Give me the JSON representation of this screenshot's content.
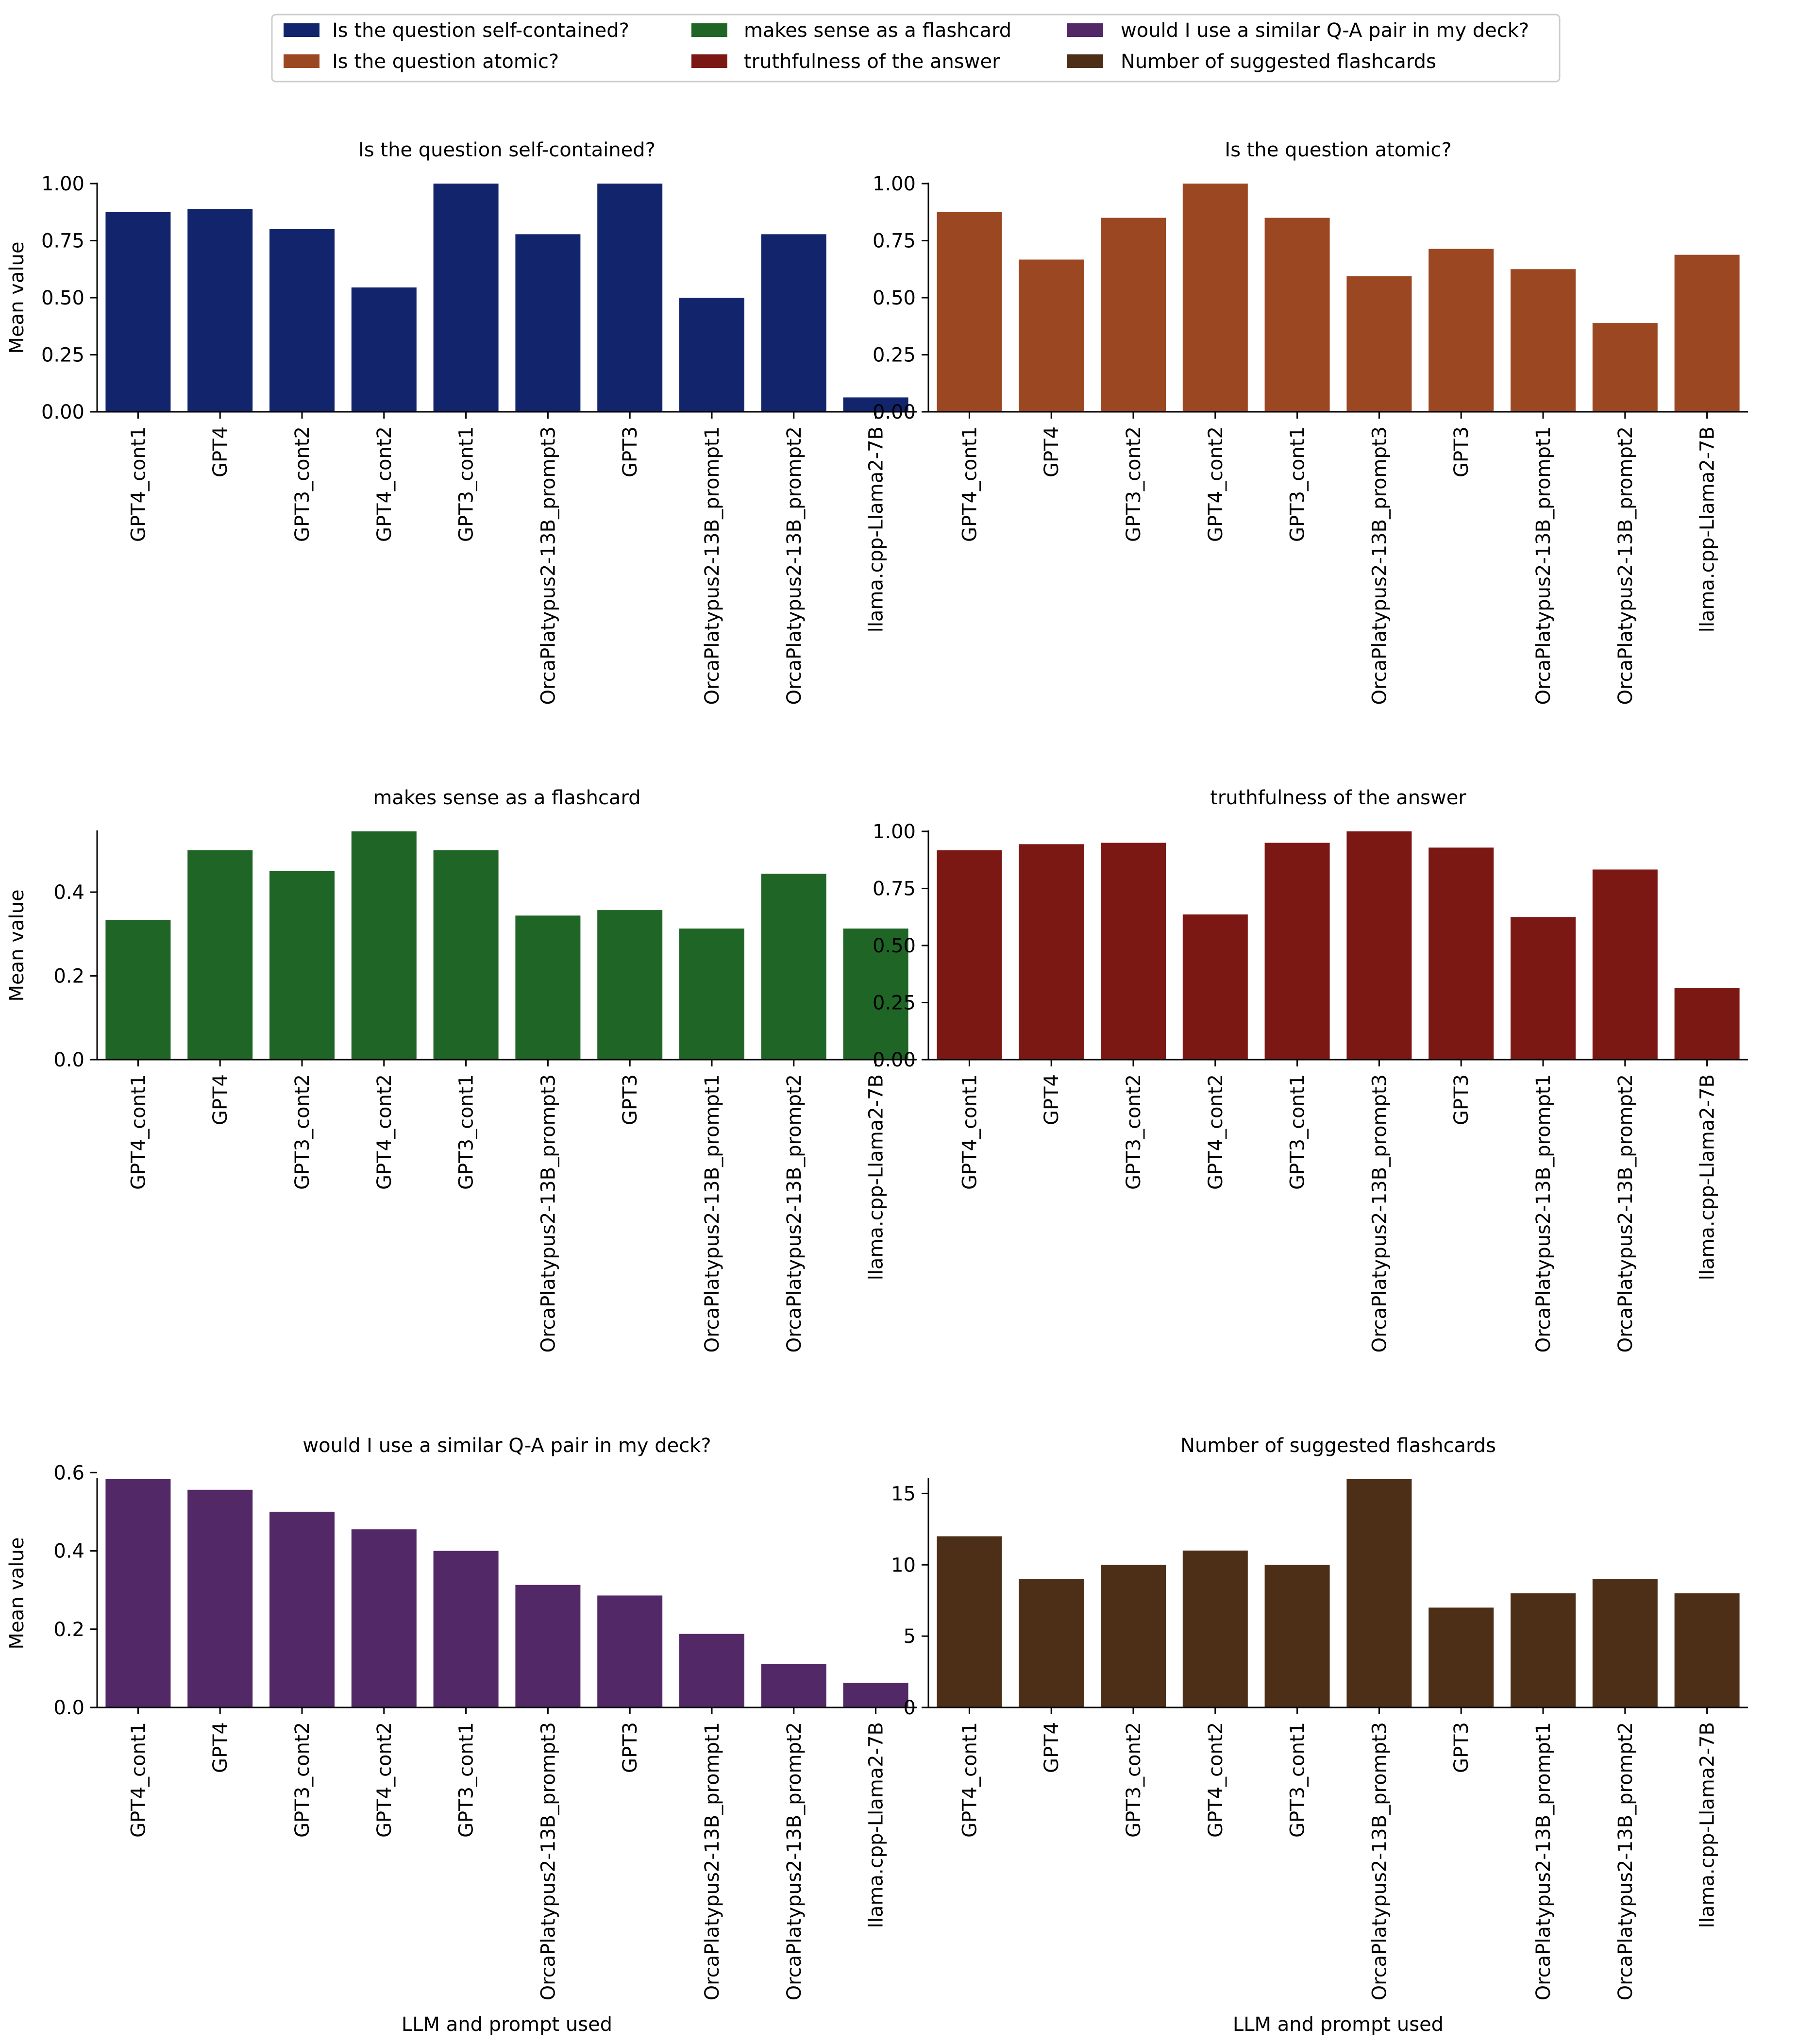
{
  "legend": [
    {
      "label": "Is the question self-contained?",
      "color": "#12246b"
    },
    {
      "label": "Is the question atomic?",
      "color": "#9b4722"
    },
    {
      "label": "makes sense as a flashcard",
      "color": "#1f6526"
    },
    {
      "label": "truthfulness of the answer",
      "color": "#7b1814"
    },
    {
      "label": "would I use a similar Q-A pair in my deck?",
      "color": "#522866"
    },
    {
      "label": "Number of suggested flashcards",
      "color": "#4d2f18"
    }
  ],
  "chart_data": [
    {
      "type": "bar",
      "title": "Is the question self-contained?",
      "ylabel": "Mean value",
      "xlabel": "",
      "ylim": [
        0,
        1.0
      ],
      "yticks": [
        "0.00",
        "0.25",
        "0.50",
        "0.75",
        "1.00"
      ],
      "color": "#12246b",
      "categories": [
        "GPT4_cont1",
        "GPT4",
        "GPT3_cont2",
        "GPT4_cont2",
        "GPT3_cont1",
        "OrcaPlatypus2-13B_prompt3",
        "GPT3",
        "OrcaPlatypus2-13B_prompt1",
        "OrcaPlatypus2-13B_prompt2",
        "llama.cpp-Llama2-7B"
      ],
      "values": [
        0.875,
        0.889,
        0.8,
        0.545,
        1.0,
        0.778,
        1.0,
        0.5,
        0.778,
        0.063
      ]
    },
    {
      "type": "bar",
      "title": "Is the question atomic?",
      "ylabel": "",
      "xlabel": "",
      "ylim": [
        0,
        1.0
      ],
      "yticks": [
        "0.00",
        "0.25",
        "0.50",
        "0.75",
        "1.00"
      ],
      "color": "#9b4722",
      "categories": [
        "GPT4_cont1",
        "GPT4",
        "GPT3_cont2",
        "GPT4_cont2",
        "GPT3_cont1",
        "OrcaPlatypus2-13B_prompt3",
        "GPT3",
        "OrcaPlatypus2-13B_prompt1",
        "OrcaPlatypus2-13B_prompt2",
        "llama.cpp-Llama2-7B"
      ],
      "values": [
        0.875,
        0.667,
        0.85,
        1.0,
        0.85,
        0.594,
        0.714,
        0.625,
        0.389,
        0.688
      ]
    },
    {
      "type": "bar",
      "title": "makes sense as a flashcard",
      "ylabel": "Mean value",
      "xlabel": "",
      "ylim": [
        0,
        0.545
      ],
      "yticks": [
        "0.0",
        "0.2",
        "0.4"
      ],
      "color": "#1f6526",
      "categories": [
        "GPT4_cont1",
        "GPT4",
        "GPT3_cont2",
        "GPT4_cont2",
        "GPT3_cont1",
        "OrcaPlatypus2-13B_prompt3",
        "GPT3",
        "OrcaPlatypus2-13B_prompt1",
        "OrcaPlatypus2-13B_prompt2",
        "llama.cpp-Llama2-7B"
      ],
      "values": [
        0.333,
        0.5,
        0.45,
        0.545,
        0.5,
        0.344,
        0.357,
        0.313,
        0.444,
        0.313
      ]
    },
    {
      "type": "bar",
      "title": "truthfulness of the answer",
      "ylabel": "",
      "xlabel": "",
      "ylim": [
        0,
        1.0
      ],
      "yticks": [
        "0.00",
        "0.25",
        "0.50",
        "0.75",
        "1.00"
      ],
      "color": "#7b1814",
      "categories": [
        "GPT4_cont1",
        "GPT4",
        "GPT3_cont2",
        "GPT4_cont2",
        "GPT3_cont1",
        "OrcaPlatypus2-13B_prompt3",
        "GPT3",
        "OrcaPlatypus2-13B_prompt1",
        "OrcaPlatypus2-13B_prompt2",
        "llama.cpp-Llama2-7B"
      ],
      "values": [
        0.917,
        0.944,
        0.95,
        0.636,
        0.95,
        1.0,
        0.929,
        0.625,
        0.833,
        0.313
      ]
    },
    {
      "type": "bar",
      "title": "would I use a similar Q-A pair in my deck?",
      "ylabel": "Mean value",
      "xlabel": "LLM and prompt used",
      "ylim": [
        0,
        0.583
      ],
      "yticks": [
        "0.0",
        "0.2",
        "0.4",
        "0.6"
      ],
      "color": "#522866",
      "categories": [
        "GPT4_cont1",
        "GPT4",
        "GPT3_cont2",
        "GPT4_cont2",
        "GPT3_cont1",
        "OrcaPlatypus2-13B_prompt3",
        "GPT3",
        "OrcaPlatypus2-13B_prompt1",
        "OrcaPlatypus2-13B_prompt2",
        "llama.cpp-Llama2-7B"
      ],
      "values": [
        0.583,
        0.556,
        0.5,
        0.455,
        0.4,
        0.313,
        0.286,
        0.188,
        0.111,
        0.063
      ]
    },
    {
      "type": "bar",
      "title": "Number of suggested flashcards",
      "ylabel": "",
      "xlabel": "LLM and prompt used",
      "ylim": [
        0,
        16
      ],
      "yticks": [
        "0",
        "5",
        "10",
        "15"
      ],
      "color": "#4d2f18",
      "categories": [
        "GPT4_cont1",
        "GPT4",
        "GPT3_cont2",
        "GPT4_cont2",
        "GPT3_cont1",
        "OrcaPlatypus2-13B_prompt3",
        "GPT3",
        "OrcaPlatypus2-13B_prompt1",
        "OrcaPlatypus2-13B_prompt2",
        "llama.cpp-Llama2-7B"
      ],
      "values": [
        12,
        9,
        10,
        11,
        10,
        16,
        7,
        8,
        9,
        8
      ]
    }
  ]
}
